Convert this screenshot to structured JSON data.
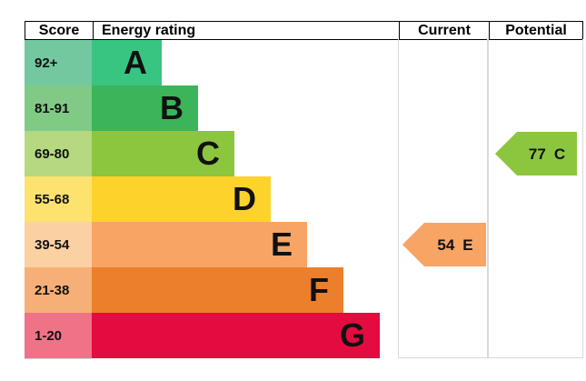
{
  "header": {
    "score": "Score",
    "energy_rating": "Energy rating",
    "current": "Current",
    "potential": "Potential"
  },
  "bands": [
    {
      "letter": "A",
      "score_range": "92+",
      "bar_color": "#38c581",
      "score_color": "#73c8a0"
    },
    {
      "letter": "B",
      "score_range": "81-91",
      "bar_color": "#3cb459",
      "score_color": "#80ca86"
    },
    {
      "letter": "C",
      "score_range": "69-80",
      "bar_color": "#8cc63f",
      "score_color": "#b5d880"
    },
    {
      "letter": "D",
      "score_range": "55-68",
      "bar_color": "#fdd22b",
      "score_color": "#fce26f"
    },
    {
      "letter": "E",
      "score_range": "39-54",
      "bar_color": "#f8a465",
      "score_color": "#fbd0a3"
    },
    {
      "letter": "F",
      "score_range": "21-38",
      "bar_color": "#ec7f2b",
      "score_color": "#f6b077"
    },
    {
      "letter": "G",
      "score_range": "1-20",
      "bar_color": "#e30b3f",
      "score_color": "#ef7287"
    }
  ],
  "current": {
    "value": "54",
    "band": "E",
    "color": "#f8a465"
  },
  "potential": {
    "value": "77",
    "band": "C",
    "color": "#8cc63f"
  },
  "chart_data": {
    "type": "bar",
    "title": "Energy rating",
    "orientation": "horizontal",
    "categories": [
      "A",
      "B",
      "C",
      "D",
      "E",
      "F",
      "G"
    ],
    "score_ranges": [
      "92+",
      "81-91",
      "69-80",
      "55-68",
      "39-54",
      "21-38",
      "1-20"
    ],
    "relative_bar_widths": [
      1,
      2,
      3,
      4,
      5,
      6,
      7
    ],
    "band_colors": [
      "#38c581",
      "#3cb459",
      "#8cc63f",
      "#fdd22b",
      "#f8a465",
      "#ec7f2b",
      "#e30b3f"
    ],
    "annotations": [
      {
        "label": "Current",
        "value": 54,
        "band": "E"
      },
      {
        "label": "Potential",
        "value": 77,
        "band": "C"
      }
    ],
    "columns": [
      "Score",
      "Energy rating",
      "Current",
      "Potential"
    ],
    "grid": false,
    "legend": false
  }
}
